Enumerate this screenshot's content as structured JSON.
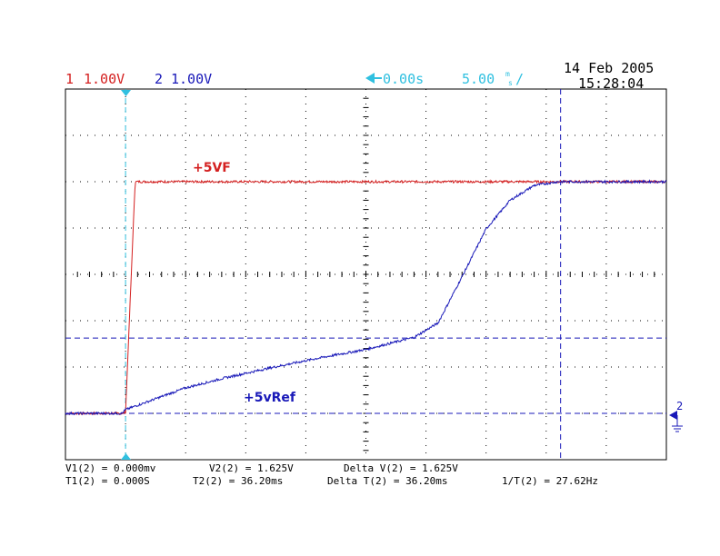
{
  "header": {
    "ch1_num": "1",
    "ch1_scale": "1.00V",
    "ch2_num": "2",
    "ch2_scale": "1.00V",
    "delay": "0.00s",
    "timebase_value": "5.00",
    "timebase_unit_top": "m",
    "timebase_unit_bottom": "s",
    "timebase_suffix": "/",
    "date": "14 Feb 2005",
    "time": "15:28:04"
  },
  "colors": {
    "ch1": "#d42020",
    "ch2": "#1818b8",
    "marker": "#30c0e0",
    "grid": "#000000"
  },
  "trace_labels": {
    "ch1": "+5VF",
    "ch2": "+5vRef"
  },
  "ground_marker": "2",
  "measurements": {
    "v1": "V1(2) = 0.000mv",
    "v2": "V2(2) = 1.625V",
    "delta_v": "Delta V(2) = 1.625V",
    "t1": "T1(2) = 0.000S",
    "t2": "T2(2) = 36.20ms",
    "delta_t": "Delta T(2) = 36.20ms",
    "inv_t": "1/T(2) = 27.62Hz"
  },
  "chart_data": {
    "type": "line",
    "x_unit": "ms",
    "y_unit": "V",
    "xlim": [
      -5,
      45
    ],
    "ylim": [
      -1,
      7
    ],
    "grid": true,
    "cursors": {
      "t1_ms": 0,
      "t2_ms": 36.2,
      "v1_v": 0,
      "v2_v": 1.625
    },
    "series": [
      {
        "name": "+5VF",
        "x": [
          -5,
          -0.3,
          0,
          0.8,
          45
        ],
        "y": [
          0,
          0,
          0.02,
          5,
          5
        ]
      },
      {
        "name": "+5vRef",
        "x": [
          -5,
          -0.3,
          0,
          5,
          8,
          12,
          16,
          20,
          24,
          26,
          28,
          30,
          32,
          34,
          36,
          38,
          40,
          45
        ],
        "y": [
          0,
          0,
          0.08,
          0.55,
          0.75,
          0.98,
          1.19,
          1.38,
          1.64,
          1.95,
          2.95,
          3.98,
          4.6,
          4.92,
          5.0,
          5.0,
          5.0,
          5.0
        ]
      }
    ]
  }
}
